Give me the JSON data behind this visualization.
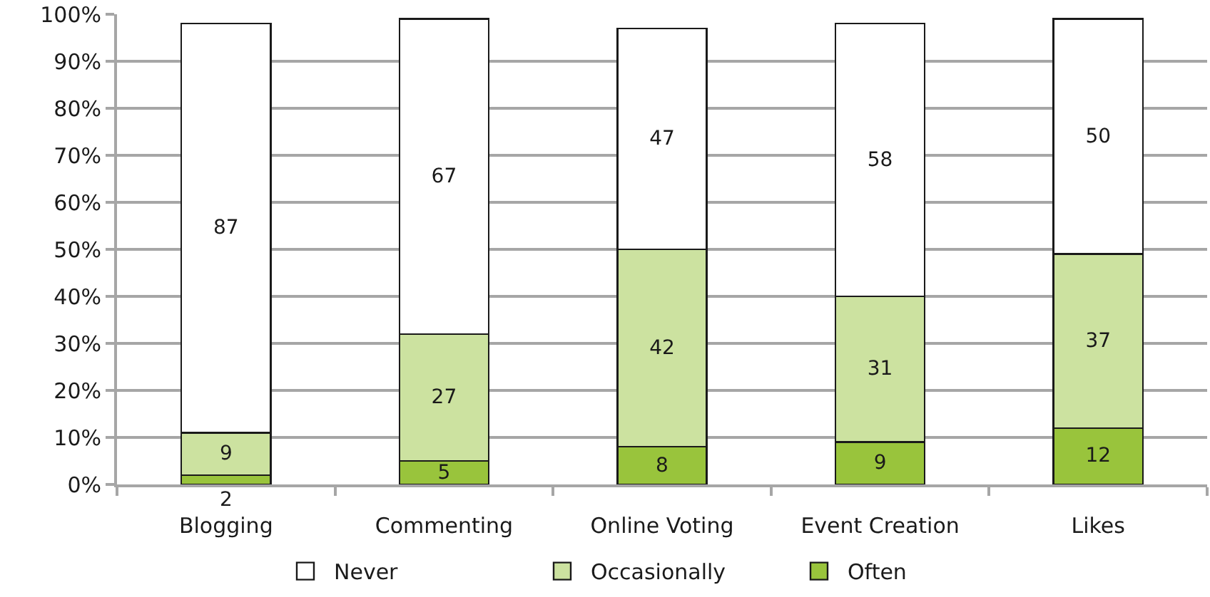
{
  "chart_data": {
    "type": "bar",
    "stacked": true,
    "categories": [
      "Blogging",
      "Commenting",
      "Online Voting",
      "Event Creation",
      "Likes"
    ],
    "series": [
      {
        "name": "Often",
        "color": "#99c43c",
        "values": [
          2,
          5,
          8,
          9,
          12
        ]
      },
      {
        "name": "Occasionally",
        "color": "#cce2a0",
        "values": [
          9,
          27,
          42,
          31,
          37
        ]
      },
      {
        "name": "Never",
        "color": "#ffffff",
        "values": [
          87,
          67,
          47,
          58,
          50
        ]
      }
    ],
    "ylim": [
      0,
      100
    ],
    "yticks": [
      {
        "value": 0,
        "label": "0%"
      },
      {
        "value": 10,
        "label": "10%"
      },
      {
        "value": 20,
        "label": "20%"
      },
      {
        "value": 30,
        "label": "30%"
      },
      {
        "value": 40,
        "label": "40%"
      },
      {
        "value": 50,
        "label": "50%"
      },
      {
        "value": 60,
        "label": "60%"
      },
      {
        "value": 70,
        "label": "70%"
      },
      {
        "value": 80,
        "label": "80%"
      },
      {
        "value": 90,
        "label": "90%"
      },
      {
        "value": 100,
        "label": "100%"
      }
    ],
    "grid": "y",
    "legend": "bottom",
    "data_labels": true
  }
}
